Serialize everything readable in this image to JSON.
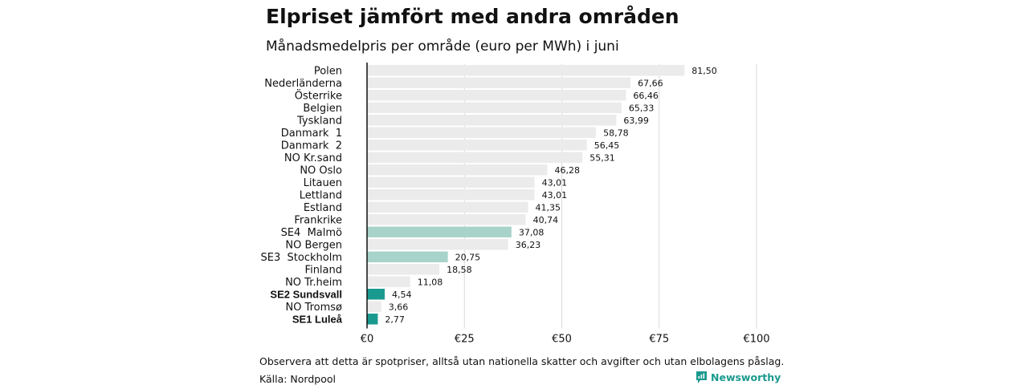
{
  "title": "Elpriset jämfört med andra områden",
  "subtitle": "Månadsmedelpris per område (euro per MWh) i juni",
  "footnote": "Observera att detta är spotpriser, alltså utan nationella skatter och avgifter och utan elbolagens påslag.",
  "source": "Källa: Nordpool",
  "brand": {
    "name": "Newsworthy",
    "icon": "newsworthy-logo-icon",
    "color": "#1a9a8e"
  },
  "colors": {
    "default": "#ebebeb",
    "highlight_light": "#a8d3ca",
    "highlight_dark": "#1a9a8e"
  },
  "chart_data": {
    "type": "bar",
    "orientation": "horizontal",
    "title": "Elpriset jämfört med andra områden",
    "subtitle": "Månadsmedelpris per område (euro per MWh) i juni",
    "xlim": [
      0,
      100
    ],
    "ticks": [
      0,
      25,
      50,
      75,
      100
    ],
    "tick_labels": [
      "€0",
      "€25",
      "€50",
      "€75",
      "€100"
    ],
    "grid": "vertical",
    "categories": [
      "Polen",
      "Nederländerna",
      "Österrike",
      "Belgien",
      "Tyskland",
      "Danmark  1",
      "Danmark  2",
      "NO Kr.sand",
      "NO Oslo",
      "Litauen",
      "Lettland",
      "Estland",
      "Frankrike",
      "SE4  Malmö",
      "NO Bergen",
      "SE3  Stockholm",
      "Finland",
      "NO Tr.heim",
      "SE2 Sundsvall",
      "NO Tromsø",
      "SE1 Luleå"
    ],
    "values": [
      81.5,
      67.66,
      66.46,
      65.33,
      63.99,
      58.78,
      56.45,
      55.31,
      46.28,
      43.01,
      43.01,
      41.35,
      40.74,
      37.08,
      36.23,
      20.75,
      18.58,
      11.08,
      4.54,
      3.66,
      2.77
    ],
    "value_labels": [
      "81,50",
      "67,66",
      "66,46",
      "65,33",
      "63,99",
      "58,78",
      "56,45",
      "55,31",
      "46,28",
      "43,01",
      "43,01",
      "41,35",
      "40,74",
      "37,08",
      "36,23",
      "20,75",
      "18,58",
      "11,08",
      "4,54",
      "3,66",
      "2,77"
    ],
    "highlight": [
      "none",
      "none",
      "none",
      "none",
      "none",
      "none",
      "none",
      "none",
      "none",
      "none",
      "none",
      "none",
      "none",
      "light",
      "none",
      "light",
      "none",
      "none",
      "dark",
      "none",
      "dark"
    ],
    "bold_labels": [
      false,
      false,
      false,
      false,
      false,
      false,
      false,
      false,
      false,
      false,
      false,
      false,
      false,
      false,
      false,
      false,
      false,
      false,
      true,
      false,
      true
    ]
  }
}
